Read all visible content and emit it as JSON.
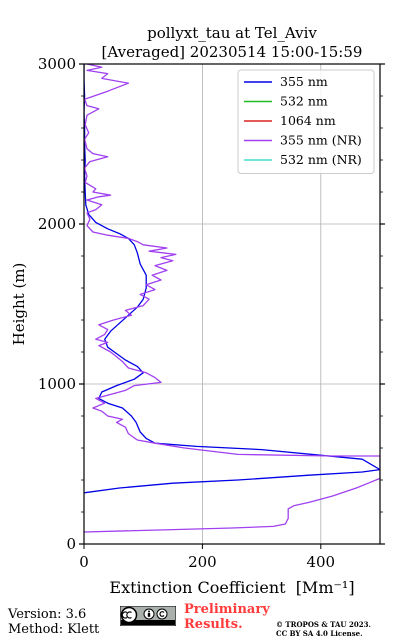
{
  "chart_data": {
    "type": "line",
    "title": "pollyxt_tau at Tel_Aviv",
    "subtitle": "[Averaged] 20230514 15:00-15:59",
    "xlabel": "Extinction Coefficient",
    "xlabel_unit": "[Mm⁻¹]",
    "ylabel": "Height (m)",
    "xlim": [
      0,
      500
    ],
    "ylim": [
      0,
      3000
    ],
    "xticks": [
      "0",
      "200",
      "400"
    ],
    "yticks": [
      "0",
      "1000",
      "2000",
      "3000"
    ],
    "grid": true,
    "legend_position": "top-right",
    "legend": [
      {
        "name": "355 nm",
        "color": "#0000e6"
      },
      {
        "name": "532 nm",
        "color": "#22bb22"
      },
      {
        "name": "1064 nm",
        "color": "#dd2222"
      },
      {
        "name": "355 nm (NR)",
        "color": "#a040f0"
      },
      {
        "name": "532 nm (NR)",
        "color": "#40e0d0"
      }
    ],
    "series": [
      {
        "name": "355 nm",
        "color": "#0000e6",
        "points": [
          [
            0,
            320
          ],
          [
            60,
            350
          ],
          [
            150,
            380
          ],
          [
            260,
            400
          ],
          [
            380,
            430
          ],
          [
            470,
            450
          ],
          [
            500,
            465
          ],
          [
            470,
            530
          ],
          [
            300,
            590
          ],
          [
            190,
            610
          ],
          [
            120,
            630
          ],
          [
            105,
            660
          ],
          [
            95,
            700
          ],
          [
            88,
            760
          ],
          [
            80,
            800
          ],
          [
            65,
            850
          ],
          [
            40,
            880
          ],
          [
            25,
            910
          ],
          [
            30,
            950
          ],
          [
            55,
            990
          ],
          [
            85,
            1030
          ],
          [
            100,
            1070
          ],
          [
            90,
            1110
          ],
          [
            70,
            1150
          ],
          [
            55,
            1190
          ],
          [
            40,
            1230
          ],
          [
            35,
            1280
          ],
          [
            45,
            1330
          ],
          [
            60,
            1380
          ],
          [
            75,
            1430
          ],
          [
            90,
            1480
          ],
          [
            100,
            1530
          ],
          [
            105,
            1600
          ],
          [
            105,
            1680
          ],
          [
            95,
            1750
          ],
          [
            90,
            1820
          ],
          [
            85,
            1870
          ],
          [
            75,
            1910
          ],
          [
            60,
            1940
          ],
          [
            40,
            1970
          ],
          [
            20,
            2010
          ],
          [
            8,
            2060
          ],
          [
            3,
            2120
          ],
          [
            2,
            2200
          ],
          [
            1,
            2300
          ],
          [
            2,
            2400
          ],
          [
            1,
            2500
          ],
          [
            1,
            2600
          ],
          [
            0,
            2700
          ],
          [
            1,
            2800
          ],
          [
            0,
            2900
          ],
          [
            0,
            3000
          ]
        ]
      },
      {
        "name": "355 nm (NR)",
        "color": "#a040f0",
        "points": [
          [
            0,
            75
          ],
          [
            150,
            90
          ],
          [
            250,
            100
          ],
          [
            320,
            110
          ],
          [
            340,
            125
          ],
          [
            345,
            160
          ],
          [
            345,
            220
          ],
          [
            355,
            240
          ],
          [
            380,
            260
          ],
          [
            420,
            300
          ],
          [
            460,
            350
          ],
          [
            480,
            380
          ],
          [
            500,
            410
          ],
          [
            500,
            550
          ],
          [
            420,
            550
          ],
          [
            260,
            560
          ],
          [
            170,
            600
          ],
          [
            120,
            630
          ],
          [
            90,
            650
          ],
          [
            75,
            690
          ],
          [
            70,
            730
          ],
          [
            55,
            760
          ],
          [
            65,
            780
          ],
          [
            40,
            800
          ],
          [
            30,
            830
          ],
          [
            15,
            850
          ],
          [
            35,
            880
          ],
          [
            20,
            910
          ],
          [
            50,
            940
          ],
          [
            70,
            960
          ],
          [
            85,
            990
          ],
          [
            130,
            1010
          ],
          [
            120,
            1040
          ],
          [
            105,
            1070
          ],
          [
            75,
            1100
          ],
          [
            65,
            1140
          ],
          [
            55,
            1170
          ],
          [
            45,
            1200
          ],
          [
            25,
            1240
          ],
          [
            40,
            1260
          ],
          [
            20,
            1280
          ],
          [
            35,
            1310
          ],
          [
            40,
            1340
          ],
          [
            25,
            1370
          ],
          [
            50,
            1400
          ],
          [
            80,
            1430
          ],
          [
            70,
            1460
          ],
          [
            100,
            1490
          ],
          [
            110,
            1530
          ],
          [
            95,
            1560
          ],
          [
            120,
            1590
          ],
          [
            105,
            1620
          ],
          [
            130,
            1650
          ],
          [
            115,
            1680
          ],
          [
            140,
            1710
          ],
          [
            120,
            1740
          ],
          [
            150,
            1770
          ],
          [
            130,
            1790
          ],
          [
            155,
            1810
          ],
          [
            110,
            1830
          ],
          [
            140,
            1850
          ],
          [
            100,
            1870
          ],
          [
            90,
            1890
          ],
          [
            75,
            1910
          ],
          [
            40,
            1930
          ],
          [
            15,
            1950
          ],
          [
            5,
            1990
          ],
          [
            10,
            2030
          ],
          [
            5,
            2070
          ],
          [
            20,
            2090
          ],
          [
            30,
            2120
          ],
          [
            5,
            2150
          ],
          [
            25,
            2170
          ],
          [
            45,
            2180
          ],
          [
            15,
            2200
          ],
          [
            20,
            2220
          ],
          [
            2,
            2260
          ],
          [
            5,
            2300
          ],
          [
            1,
            2350
          ],
          [
            10,
            2390
          ],
          [
            40,
            2420
          ],
          [
            15,
            2440
          ],
          [
            5,
            2470
          ],
          [
            1,
            2530
          ],
          [
            8,
            2570
          ],
          [
            2,
            2620
          ],
          [
            5,
            2680
          ],
          [
            25,
            2720
          ],
          [
            5,
            2740
          ],
          [
            1,
            2780
          ],
          [
            40,
            2830
          ],
          [
            75,
            2880
          ],
          [
            30,
            2910
          ],
          [
            40,
            2940
          ],
          [
            5,
            2960
          ],
          [
            30,
            2980
          ],
          [
            5,
            3000
          ]
        ]
      }
    ]
  },
  "footer": {
    "version": "Version: 3.6",
    "method": "Method: Klett",
    "preliminary_line1": "Preliminary",
    "preliminary_line2": "Results.",
    "license_line1": "© TROPOS & TAU 2023.",
    "license_line2": "CC BY SA 4.0 License."
  }
}
